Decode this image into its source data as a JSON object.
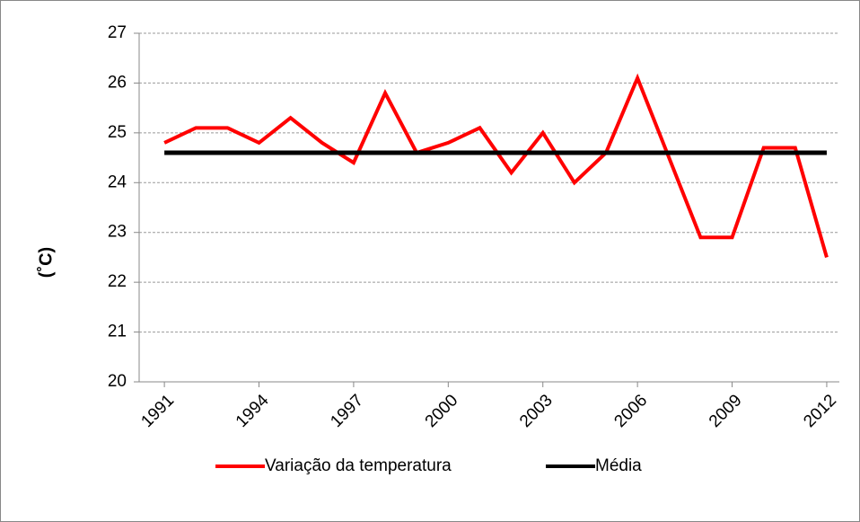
{
  "chart_data": {
    "type": "line",
    "y_label": "(˚C)",
    "x": [
      1991,
      1992,
      1993,
      1994,
      1995,
      1996,
      1997,
      1998,
      1999,
      2000,
      2001,
      2002,
      2003,
      2004,
      2005,
      2006,
      2007,
      2008,
      2009,
      2010,
      2011,
      2012
    ],
    "series": [
      {
        "name": "Variação da temperatura",
        "color": "#ff0000",
        "values": [
          24.8,
          25.1,
          25.1,
          24.8,
          25.3,
          24.8,
          24.4,
          25.8,
          24.6,
          24.8,
          25.1,
          24.2,
          25.0,
          24.0,
          24.6,
          26.1,
          24.5,
          22.9,
          22.9,
          24.7,
          24.7,
          22.5
        ]
      },
      {
        "name": "Média",
        "color": "#000000",
        "values": [
          24.6,
          24.6,
          24.6,
          24.6,
          24.6,
          24.6,
          24.6,
          24.6,
          24.6,
          24.6,
          24.6,
          24.6,
          24.6,
          24.6,
          24.6,
          24.6,
          24.6,
          24.6,
          24.6,
          24.6,
          24.6,
          24.6
        ]
      }
    ],
    "xlim": [
      1990.2,
      2012.4
    ],
    "xticks": [
      1991,
      1994,
      1997,
      2000,
      2003,
      2006,
      2009,
      2012
    ],
    "ylim": [
      20,
      27
    ],
    "yticks": [
      20,
      21,
      22,
      23,
      24,
      25,
      26,
      27
    ],
    "grid": true,
    "legend": "bottom"
  }
}
